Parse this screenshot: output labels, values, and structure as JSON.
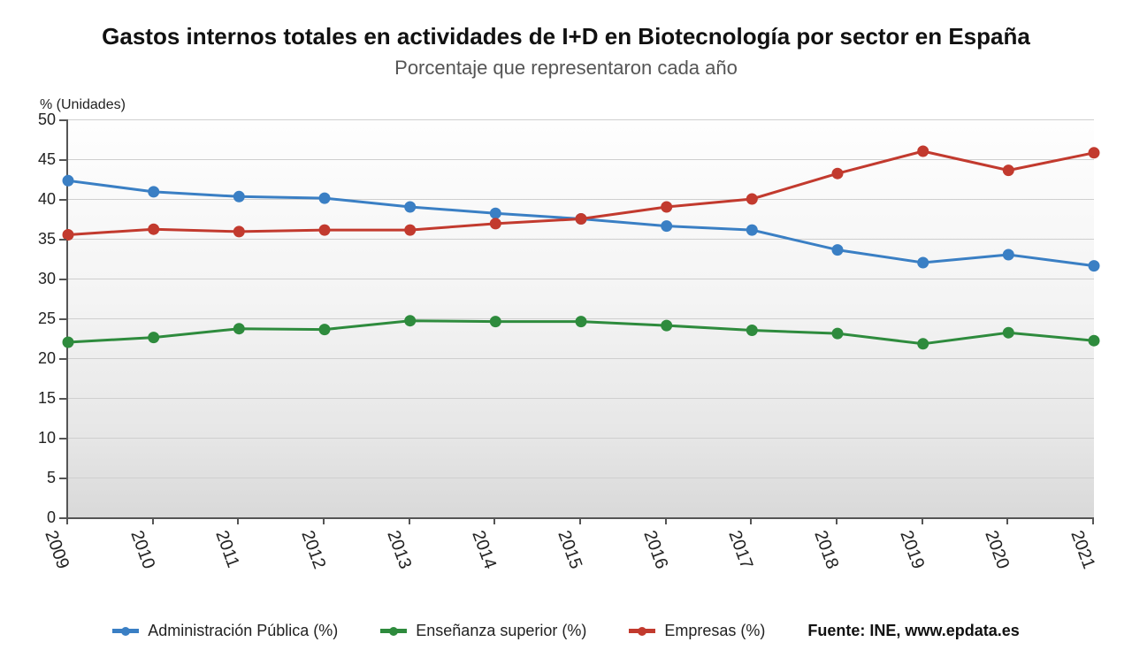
{
  "title": "Gastos internos totales en actividades de I+D en Biotecnología por sector en España",
  "subtitle": "Porcentaje que representaron cada año",
  "yaxis_title": "% (Unidades)",
  "source_label": "Fuente: INE, www.epdata.es",
  "chart": {
    "type": "line",
    "background_gradient_top": "#fefefe",
    "background_gradient_bottom": "#d9d9d9",
    "grid_color": "#cfcfcf",
    "axis_color": "#555555",
    "ylim": [
      0,
      50
    ],
    "ytick_step": 5,
    "yticks": [
      0,
      5,
      10,
      15,
      20,
      25,
      30,
      35,
      40,
      45,
      50
    ],
    "categories": [
      "2009",
      "2010",
      "2011",
      "2012",
      "2013",
      "2014",
      "2015",
      "2016",
      "2017",
      "2018",
      "2019",
      "2020",
      "2021"
    ],
    "marker_radius": 6,
    "line_width": 3,
    "label_fontsize": 18,
    "tick_fontsize": 18,
    "series": [
      {
        "name": "Administración Pública (%)",
        "color": "#3a7fc4",
        "values": [
          42.3,
          40.9,
          40.3,
          40.1,
          39.0,
          38.2,
          37.5,
          36.6,
          36.1,
          33.6,
          32.0,
          33.0,
          31.6
        ]
      },
      {
        "name": "Enseñanza superior (%)",
        "color": "#2e8b3d",
        "values": [
          22.0,
          22.6,
          23.7,
          23.6,
          24.7,
          24.6,
          24.6,
          24.1,
          23.5,
          23.1,
          21.8,
          23.2,
          22.2
        ]
      },
      {
        "name": "Empresas (%)",
        "color": "#c23a2e",
        "values": [
          35.5,
          36.2,
          35.9,
          36.1,
          36.1,
          36.9,
          37.5,
          39.0,
          40.0,
          43.2,
          46.0,
          43.6,
          45.8
        ]
      }
    ]
  }
}
